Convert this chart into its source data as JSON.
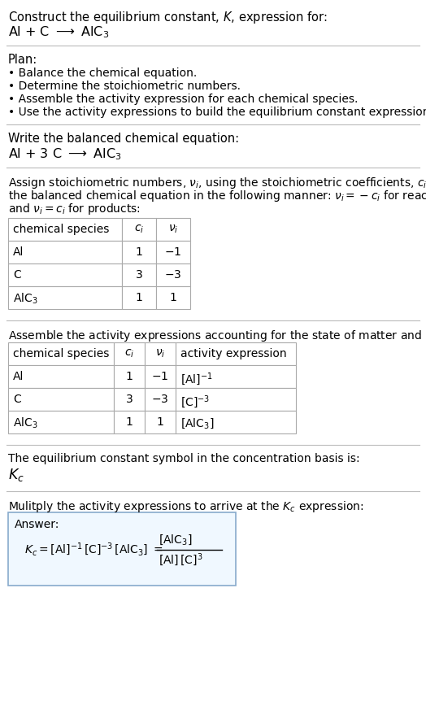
{
  "bg_color": "#ffffff",
  "text_color": "#000000",
  "title_line1": "Construct the equilibrium constant, $K$, expression for:",
  "title_line2": "Al + C $\\longrightarrow$ AlC$_3$",
  "plan_header": "Plan:",
  "plan_bullets": [
    "Balance the chemical equation.",
    "Determine the stoichiometric numbers.",
    "Assemble the activity expression for each chemical species.",
    "Use the activity expressions to build the equilibrium constant expression."
  ],
  "balanced_header": "Write the balanced chemical equation:",
  "balanced_eq": "Al + 3 C $\\longrightarrow$ AlC$_3$",
  "stoich_intro": "Assign stoichiometric numbers, $\\nu_i$, using the stoichiometric coefficients, $c_i$, from\nthe balanced chemical equation in the following manner: $\\nu_i = -c_i$ for reactants\nand $\\nu_i = c_i$ for products:",
  "table1_headers": [
    "chemical species",
    "$c_i$",
    "$\\nu_i$"
  ],
  "table1_rows": [
    [
      "Al",
      "1",
      "$-1$"
    ],
    [
      "C",
      "3",
      "$-3$"
    ],
    [
      "AlC$_3$",
      "1",
      "1"
    ]
  ],
  "assemble_intro": "Assemble the activity expressions accounting for the state of matter and $\\nu_i$:",
  "table2_headers": [
    "chemical species",
    "$c_i$",
    "$\\nu_i$",
    "activity expression"
  ],
  "table2_rows": [
    [
      "Al",
      "1",
      "$-1$",
      "$[\\mathrm{Al}]^{-1}$"
    ],
    [
      "C",
      "3",
      "$-3$",
      "$[\\mathrm{C}]^{-3}$"
    ],
    [
      "AlC$_3$",
      "1",
      "1",
      "$[\\mathrm{AlC_3}]$"
    ]
  ],
  "kc_header": "The equilibrium constant symbol in the concentration basis is:",
  "kc_symbol": "$K_c$",
  "multiply_header": "Mulitply the activity expressions to arrive at the $K_c$ expression:",
  "answer_label": "Answer:",
  "answer_box_color": "#f0f8ff",
  "answer_border_color": "#88aacc"
}
